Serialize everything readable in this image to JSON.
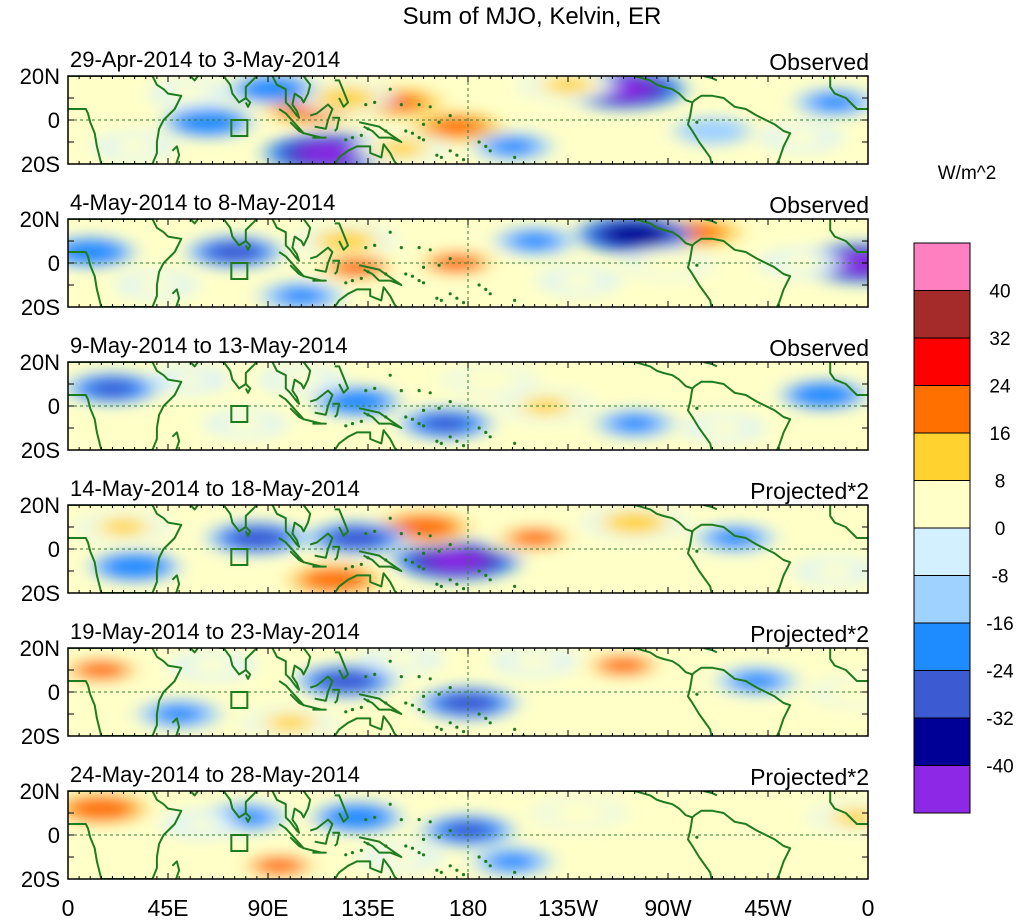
{
  "figure": {
    "title": "Sum of MJO, Kelvin, ER"
  },
  "panels": [
    {
      "date_range": "29-Apr-2014 to 3-May-2014",
      "label": "Observed"
    },
    {
      "date_range": "4-May-2014 to 8-May-2014",
      "label": "Observed"
    },
    {
      "date_range": "9-May-2014 to 13-May-2014",
      "label": "Observed"
    },
    {
      "date_range": "14-May-2014 to 18-May-2014",
      "label": "Projected*2"
    },
    {
      "date_range": "19-May-2014 to 23-May-2014",
      "label": "Projected*2"
    },
    {
      "date_range": "24-May-2014 to 28-May-2014",
      "label": "Projected*2"
    }
  ],
  "axes": {
    "lat_ticks": [
      "20N",
      "0",
      "20S"
    ],
    "lon_ticks": [
      "0",
      "45E",
      "90E",
      "135E",
      "180",
      "135W",
      "90W",
      "45W",
      "0"
    ]
  },
  "colorbar": {
    "unit": "W/m^2",
    "labels": [
      "40",
      "32",
      "24",
      "16",
      "8",
      "0",
      "-8",
      "-16",
      "-24",
      "-32",
      "-40"
    ],
    "colors": [
      "#ff80c0",
      "#a52a2a",
      "#ff0000",
      "#ff7000",
      "#ffd230",
      "#ffffc8",
      "#d2f0ff",
      "#a0d2ff",
      "#1e8cff",
      "#3c5ad2",
      "#000096",
      "#8c28e6"
    ]
  },
  "chart_data": {
    "type": "heatmap",
    "title": "Sum of MJO, Kelvin, ER",
    "units": "W/m^2",
    "xlim": [
      0,
      360
    ],
    "ylim": [
      -20,
      20
    ],
    "levels": [
      -40,
      -32,
      -24,
      -16,
      -8,
      0,
      8,
      16,
      24,
      32,
      40
    ],
    "panels": [
      {
        "date_range": "29-Apr-2014 to 3-May-2014",
        "type": "Observed",
        "features": [
          {
            "lon": 110,
            "lat": 5,
            "value": 30
          },
          {
            "lon": 148,
            "lat": 8,
            "value": 28
          },
          {
            "lon": 125,
            "lat": 10,
            "value": 20
          },
          {
            "lon": 175,
            "lat": -3,
            "value": 28
          },
          {
            "lon": 250,
            "lat": 14,
            "value": -34
          },
          {
            "lon": 117,
            "lat": -15,
            "value": -36
          },
          {
            "lon": 63,
            "lat": -1,
            "value": -16
          },
          {
            "lon": 150,
            "lat": -13,
            "value": 18
          },
          {
            "lon": 225,
            "lat": 16,
            "value": 18
          },
          {
            "lon": 92,
            "lat": 14,
            "value": -14
          },
          {
            "lon": 30,
            "lat": -12,
            "value": 10
          },
          {
            "lon": 290,
            "lat": -5,
            "value": -8
          },
          {
            "lon": 200,
            "lat": -12,
            "value": -10
          },
          {
            "lon": 345,
            "lat": 8,
            "value": -10
          },
          {
            "lon": 330,
            "lat": -8,
            "value": 10
          },
          {
            "lon": 55,
            "lat": 12,
            "value": 10
          }
        ]
      },
      {
        "date_range": "4-May-2014 to 8-May-2014",
        "type": "Observed",
        "features": [
          {
            "lon": 283,
            "lat": 14,
            "value": 28
          },
          {
            "lon": 255,
            "lat": 13,
            "value": -30
          },
          {
            "lon": 175,
            "lat": 0,
            "value": 26
          },
          {
            "lon": 125,
            "lat": 10,
            "value": 20
          },
          {
            "lon": 130,
            "lat": -2,
            "value": 26
          },
          {
            "lon": 357,
            "lat": 0,
            "value": -34
          },
          {
            "lon": 75,
            "lat": 5,
            "value": -20
          },
          {
            "lon": 10,
            "lat": 5,
            "value": -16
          },
          {
            "lon": 270,
            "lat": 0,
            "value": 14
          },
          {
            "lon": 210,
            "lat": 10,
            "value": -10
          },
          {
            "lon": 40,
            "lat": -10,
            "value": 10
          },
          {
            "lon": 230,
            "lat": -8,
            "value": 10
          },
          {
            "lon": 105,
            "lat": -15,
            "value": -12
          },
          {
            "lon": 330,
            "lat": 0,
            "value": 10
          }
        ]
      },
      {
        "date_range": "9-May-2014 to 13-May-2014",
        "type": "Observed",
        "features": [
          {
            "lon": 20,
            "lat": 8,
            "value": -18
          },
          {
            "lon": 130,
            "lat": 2,
            "value": -14
          },
          {
            "lon": 170,
            "lat": -8,
            "value": -18
          },
          {
            "lon": 190,
            "lat": 12,
            "value": 14
          },
          {
            "lon": 215,
            "lat": 0,
            "value": 16
          },
          {
            "lon": 105,
            "lat": 12,
            "value": 12
          },
          {
            "lon": 80,
            "lat": -8,
            "value": 10
          },
          {
            "lon": 340,
            "lat": 5,
            "value": -14
          },
          {
            "lon": 295,
            "lat": -10,
            "value": 10
          },
          {
            "lon": 255,
            "lat": -8,
            "value": -10
          },
          {
            "lon": 55,
            "lat": 12,
            "value": 8
          }
        ]
      },
      {
        "date_range": "14-May-2014 to 18-May-2014",
        "type": "Projected*2",
        "features": [
          {
            "lon": 120,
            "lat": -14,
            "value": 30
          },
          {
            "lon": 175,
            "lat": -5,
            "value": -36
          },
          {
            "lon": 160,
            "lat": 10,
            "value": 30
          },
          {
            "lon": 210,
            "lat": 5,
            "value": 24
          },
          {
            "lon": 255,
            "lat": 12,
            "value": 22
          },
          {
            "lon": 85,
            "lat": 5,
            "value": -22
          },
          {
            "lon": 130,
            "lat": 5,
            "value": -22
          },
          {
            "lon": 25,
            "lat": 10,
            "value": 16
          },
          {
            "lon": 30,
            "lat": -8,
            "value": -16
          },
          {
            "lon": 300,
            "lat": 5,
            "value": -10
          },
          {
            "lon": 345,
            "lat": -10,
            "value": 10
          }
        ]
      },
      {
        "date_range": "19-May-2014 to 23-May-2014",
        "type": "Projected*2",
        "features": [
          {
            "lon": 15,
            "lat": 10,
            "value": 26
          },
          {
            "lon": 250,
            "lat": 12,
            "value": 24
          },
          {
            "lon": 125,
            "lat": 5,
            "value": -22
          },
          {
            "lon": 180,
            "lat": -5,
            "value": -22
          },
          {
            "lon": 100,
            "lat": -14,
            "value": 16
          },
          {
            "lon": 65,
            "lat": 12,
            "value": 12
          },
          {
            "lon": 210,
            "lat": 14,
            "value": 12
          },
          {
            "lon": 50,
            "lat": -10,
            "value": -12
          },
          {
            "lon": 355,
            "lat": 0,
            "value": 14
          },
          {
            "lon": 310,
            "lat": 5,
            "value": -10
          },
          {
            "lon": 150,
            "lat": 15,
            "value": 10
          }
        ]
      },
      {
        "date_range": "24-May-2014 to 28-May-2014",
        "type": "Projected*2",
        "features": [
          {
            "lon": 15,
            "lat": 12,
            "value": 30
          },
          {
            "lon": 95,
            "lat": -14,
            "value": 24
          },
          {
            "lon": 180,
            "lat": 2,
            "value": -18
          },
          {
            "lon": 130,
            "lat": 8,
            "value": -16
          },
          {
            "lon": 230,
            "lat": 10,
            "value": 14
          },
          {
            "lon": 355,
            "lat": 8,
            "value": 16
          },
          {
            "lon": 80,
            "lat": 8,
            "value": -12
          },
          {
            "lon": 150,
            "lat": -10,
            "value": 10
          },
          {
            "lon": 200,
            "lat": -12,
            "value": -10
          },
          {
            "lon": 60,
            "lat": 5,
            "value": 8
          }
        ]
      }
    ]
  }
}
